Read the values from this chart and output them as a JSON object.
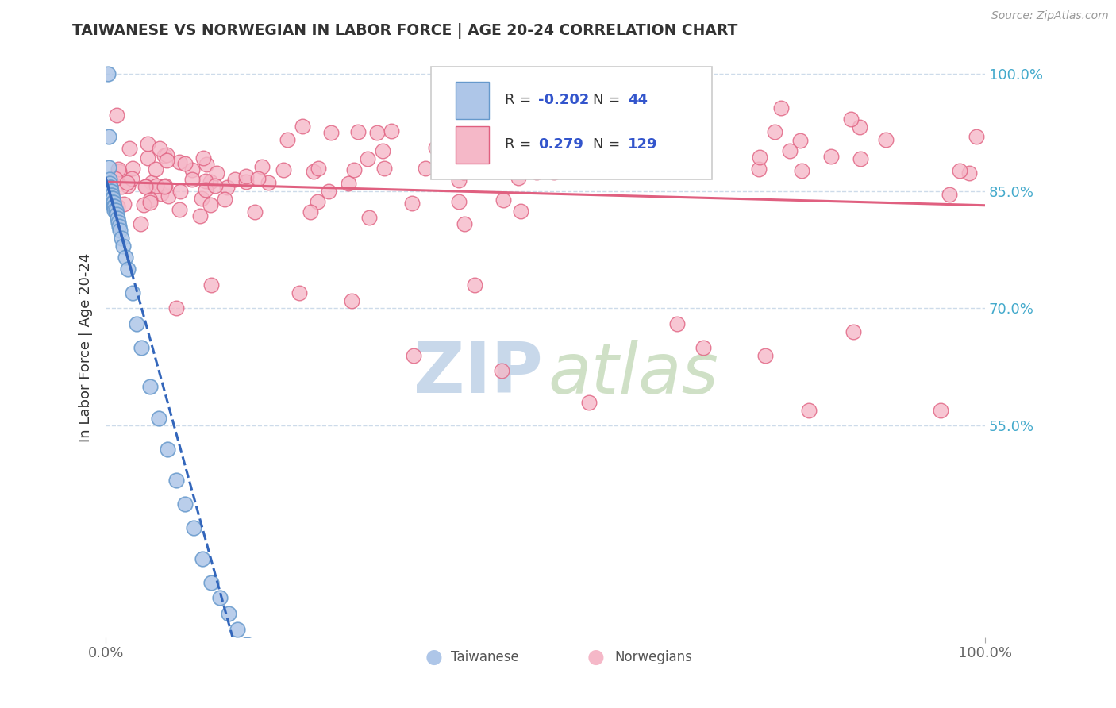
{
  "title": "TAIWANESE VS NORWEGIAN IN LABOR FORCE | AGE 20-24 CORRELATION CHART",
  "source": "Source: ZipAtlas.com",
  "ylabel": "In Labor Force | Age 20-24",
  "taiwanese_fill": "#aec6e8",
  "taiwanese_edge": "#6699cc",
  "norwegian_fill": "#f5b8c8",
  "norwegian_edge": "#e06080",
  "trend_tw_color": "#3366bb",
  "trend_no_color": "#e06080",
  "watermark_zip_color": "#c8d8ea",
  "watermark_atlas_color": "#a8c898",
  "R_tw": "-0.202",
  "N_tw": 44,
  "R_no": "0.279",
  "N_no": 129,
  "legend_text_color": "#3355cc",
  "background": "#ffffff",
  "grid_color": "#c8d8e8",
  "ytick_color": "#44aacc",
  "title_color": "#333333",
  "source_color": "#999999",
  "ylabel_color": "#333333"
}
